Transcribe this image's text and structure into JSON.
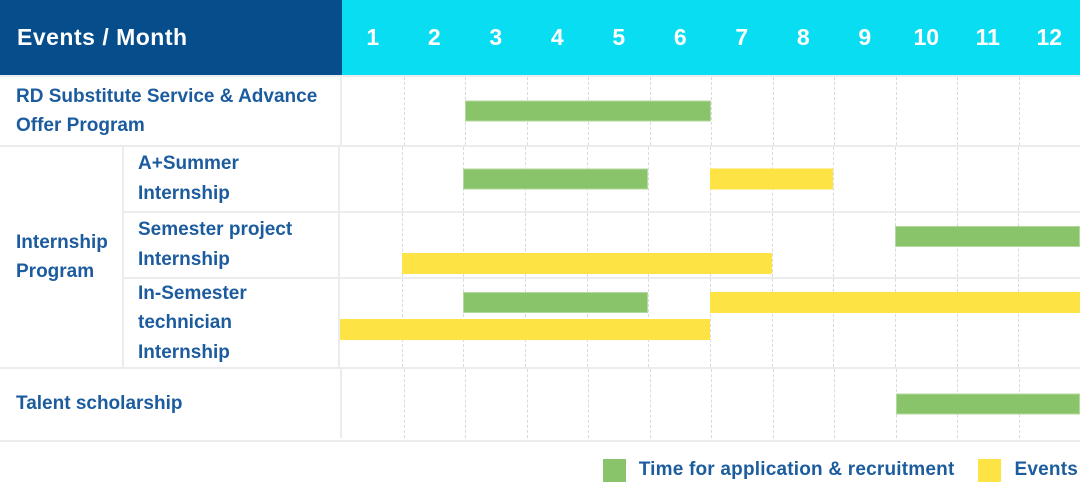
{
  "header": {
    "title": "Events / Month",
    "months": [
      "1",
      "2",
      "3",
      "4",
      "5",
      "6",
      "7",
      "8",
      "9",
      "10",
      "11",
      "12"
    ]
  },
  "colors": {
    "header_navy": "#054d8b",
    "header_cyan": "#09ddf1",
    "label_blue": "#1c5c9e",
    "bar_green": "#8ac46a",
    "bar_yellow": "#fde344",
    "grid_border": "#ebecee"
  },
  "legend": {
    "items": [
      {
        "label": "Time for application & recruitment",
        "color": "#8ac46a"
      },
      {
        "label": "Events",
        "color": "#fde344"
      }
    ]
  },
  "chart_data": {
    "type": "table",
    "subtype": "gantt",
    "title": "Events / Month",
    "x": [
      1,
      2,
      3,
      4,
      5,
      6,
      7,
      8,
      9,
      10,
      11,
      12
    ],
    "xlabel": "Month",
    "series_legend": [
      "Time for application & recruitment",
      "Events"
    ],
    "rows": [
      {
        "group": "",
        "label": "RD Substitute Service & Advance Offer Program",
        "bars": [
          {
            "series": "Time for application & recruitment",
            "color": "#8ac46a",
            "start_month": 3,
            "end_month": 6,
            "lane": "middle"
          }
        ]
      },
      {
        "group": "Internship Program",
        "label": "A+Summer Internship",
        "bars": [
          {
            "series": "Time for application & recruitment",
            "color": "#8ac46a",
            "start_month": 3,
            "end_month": 5,
            "lane": "middle"
          },
          {
            "series": "Events",
            "color": "#fde344",
            "start_month": 7,
            "end_month": 8,
            "lane": "middle"
          }
        ]
      },
      {
        "group": "Internship Program",
        "label": "Semester project Internship",
        "bars": [
          {
            "series": "Time for application & recruitment",
            "color": "#8ac46a",
            "start_month": 10,
            "end_month": 12,
            "lane": "top"
          },
          {
            "series": "Events",
            "color": "#fde344",
            "start_month": 2,
            "end_month": 7,
            "lane": "bottom"
          }
        ]
      },
      {
        "group": "Internship Program",
        "label": "In-Semester technician Internship",
        "bars": [
          {
            "series": "Time for application & recruitment",
            "color": "#8ac46a",
            "start_month": 3,
            "end_month": 5,
            "lane": "top"
          },
          {
            "series": "Events",
            "color": "#fde344",
            "start_month": 7,
            "end_month": 12,
            "lane": "top"
          },
          {
            "series": "Events",
            "color": "#fde344",
            "start_month": 1,
            "end_month": 6,
            "lane": "bottom"
          }
        ]
      },
      {
        "group": "",
        "label": "Talent scholarship",
        "bars": [
          {
            "series": "Time for application & recruitment",
            "color": "#8ac46a",
            "start_month": 10,
            "end_month": 12,
            "lane": "middle"
          }
        ]
      }
    ]
  }
}
